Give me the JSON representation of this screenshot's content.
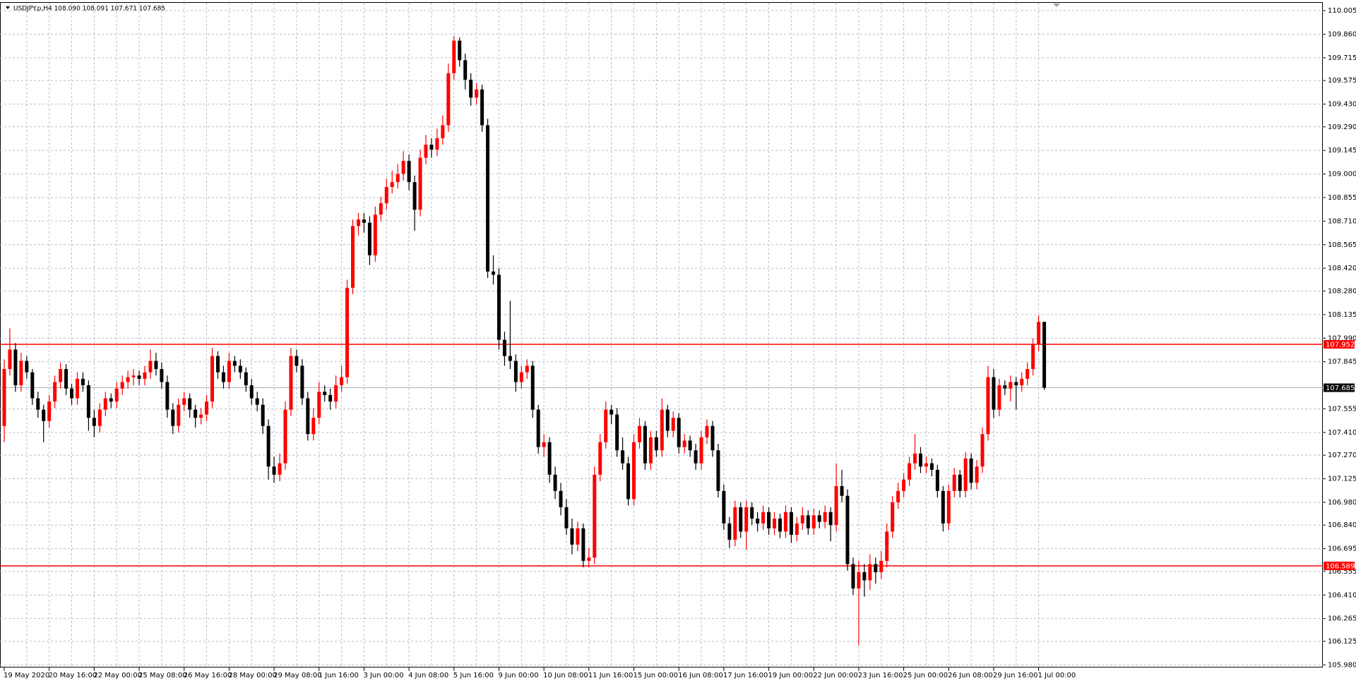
{
  "chart_data": {
    "type": "candlestick",
    "title": "USDJPY.p,H4  108.090 108.091 107.671 107.685",
    "up_color": "#ff0000",
    "down_color": "#000000",
    "grid": true,
    "ylim": [
      105.964,
      110.053
    ],
    "yticks": [
      110.005,
      {
        "value": 109.86,
        "label": "109.860"
      },
      109.715,
      109.575,
      {
        "value": 109.43,
        "label": "109.430"
      },
      {
        "value": 109.29,
        "label": "109.290"
      },
      109.145,
      {
        "value": 109,
        "label": "109.000"
      },
      108.855,
      {
        "value": 108.71,
        "label": "108.710"
      },
      108.565,
      {
        "value": 108.42,
        "label": "108.420"
      },
      {
        "value": 108.28,
        "label": "108.280"
      },
      108.135,
      {
        "value": 107.99,
        "label": "107.990"
      },
      107.845,
      107.555,
      {
        "value": 107.41,
        "label": "107.410"
      },
      {
        "value": 107.27,
        "label": "107.270"
      },
      107.125,
      {
        "value": 106.98,
        "label": "106.980"
      },
      {
        "value": 106.84,
        "label": "106.840"
      },
      106.695,
      106.555,
      {
        "value": 106.41,
        "label": "106.410"
      },
      106.265,
      106.125,
      {
        "value": 105.98,
        "label": "105.980"
      }
    ],
    "hlines": [
      {
        "value": 107.952,
        "color": "#ff0000"
      },
      {
        "value": 106.589,
        "color": "#ff0000"
      },
      {
        "value": 107.685,
        "color": "#a9b2bd"
      }
    ],
    "categories": [
      "19 May 2020",
      null,
      null,
      null,
      null,
      null,
      null,
      null,
      "20 May 16:00",
      null,
      null,
      null,
      null,
      null,
      null,
      null,
      "22 May 00:00",
      null,
      null,
      null,
      null,
      null,
      null,
      null,
      "25 May 08:00",
      null,
      null,
      null,
      null,
      null,
      null,
      null,
      "26 May 16:00",
      null,
      null,
      null,
      null,
      null,
      null,
      null,
      "28 May 00:00",
      null,
      null,
      null,
      null,
      null,
      null,
      null,
      "29 May 08:00",
      null,
      null,
      null,
      null,
      null,
      null,
      null,
      "1 Jun 16:00",
      null,
      null,
      null,
      null,
      null,
      null,
      null,
      "3 Jun 00:00",
      null,
      null,
      null,
      null,
      null,
      null,
      null,
      "4 Jun 08:00",
      null,
      null,
      null,
      null,
      null,
      null,
      null,
      "5 Jun 16:00",
      null,
      null,
      null,
      null,
      null,
      null,
      null,
      "9 Jun 00:00",
      null,
      null,
      null,
      null,
      null,
      null,
      null,
      "10 Jun 08:00",
      null,
      null,
      null,
      null,
      null,
      null,
      null,
      "11 Jun 16:00",
      null,
      null,
      null,
      null,
      null,
      null,
      null,
      "15 Jun 00:00",
      null,
      null,
      null,
      null,
      null,
      null,
      null,
      "16 Jun 08:00",
      null,
      null,
      null,
      null,
      null,
      null,
      null,
      "17 Jun 16:00",
      null,
      null,
      null,
      null,
      null,
      null,
      null,
      "19 Jun 00:00",
      null,
      null,
      null,
      null,
      null,
      null,
      null,
      "22 Jun 00:00",
      null,
      null,
      null,
      null,
      null,
      null,
      null,
      "23 Jun 16:00",
      null,
      null,
      null,
      null,
      null,
      null,
      null,
      "25 Jun 00:00",
      null,
      null,
      null,
      null,
      null,
      null,
      null,
      "26 Jun 08:00",
      null,
      null,
      null,
      null,
      null,
      null,
      null,
      "29 Jun 16:00",
      null,
      null,
      null,
      null,
      null,
      null,
      null,
      "1 Jul 00:00",
      null
    ],
    "ohlc": [
      [
        107.45,
        107.86,
        107.35,
        107.8
      ],
      [
        107.8,
        108.05,
        107.76,
        107.92
      ],
      [
        107.92,
        107.96,
        107.66,
        107.7
      ],
      [
        107.7,
        107.9,
        107.66,
        107.85
      ],
      [
        107.85,
        107.88,
        107.74,
        107.78
      ],
      [
        107.78,
        107.8,
        107.58,
        107.62
      ],
      [
        107.62,
        107.66,
        107.5,
        107.55
      ],
      [
        107.55,
        107.58,
        107.35,
        107.48
      ],
      [
        107.48,
        107.64,
        107.44,
        107.6
      ],
      [
        107.6,
        107.76,
        107.56,
        107.72
      ],
      [
        107.72,
        107.84,
        107.68,
        107.8
      ],
      [
        107.8,
        107.83,
        107.64,
        107.68
      ],
      [
        107.68,
        107.71,
        107.58,
        107.62
      ],
      [
        107.62,
        107.78,
        107.58,
        107.74
      ],
      [
        107.74,
        107.78,
        107.66,
        107.7
      ],
      [
        107.7,
        107.73,
        107.42,
        107.5
      ],
      [
        107.5,
        107.55,
        107.38,
        107.45
      ],
      [
        107.45,
        107.59,
        107.41,
        107.55
      ],
      [
        107.55,
        107.66,
        107.51,
        107.62
      ],
      [
        107.62,
        107.65,
        107.56,
        107.6
      ],
      [
        107.6,
        107.72,
        107.56,
        107.68
      ],
      [
        107.68,
        107.76,
        107.64,
        107.72
      ],
      [
        107.72,
        107.79,
        107.68,
        107.75
      ],
      [
        107.75,
        107.8,
        107.7,
        107.76
      ],
      [
        107.76,
        107.79,
        107.7,
        107.74
      ],
      [
        107.74,
        107.82,
        107.7,
        107.78
      ],
      [
        107.78,
        107.92,
        107.74,
        107.85
      ],
      [
        107.85,
        107.9,
        107.76,
        107.8
      ],
      [
        107.8,
        107.84,
        107.68,
        107.72
      ],
      [
        107.72,
        107.76,
        107.5,
        107.55
      ],
      [
        107.55,
        107.59,
        107.4,
        107.45
      ],
      [
        107.45,
        107.62,
        107.41,
        107.58
      ],
      [
        107.58,
        107.66,
        107.54,
        107.62
      ],
      [
        107.62,
        107.65,
        107.5,
        107.55
      ],
      [
        107.55,
        107.58,
        107.44,
        107.5
      ],
      [
        107.5,
        107.56,
        107.46,
        107.52
      ],
      [
        107.52,
        107.64,
        107.48,
        107.6
      ],
      [
        107.6,
        107.93,
        107.56,
        107.88
      ],
      [
        107.88,
        107.91,
        107.74,
        107.78
      ],
      [
        107.78,
        107.82,
        107.68,
        107.72
      ],
      [
        107.72,
        107.9,
        107.68,
        107.85
      ],
      [
        107.85,
        107.88,
        107.78,
        107.82
      ],
      [
        107.82,
        107.86,
        107.74,
        107.78
      ],
      [
        107.78,
        107.81,
        107.66,
        107.7
      ],
      [
        107.7,
        107.74,
        107.58,
        107.62
      ],
      [
        107.62,
        107.66,
        107.54,
        107.58
      ],
      [
        107.58,
        107.62,
        107.4,
        107.45
      ],
      [
        107.45,
        107.49,
        107.12,
        107.2
      ],
      [
        107.2,
        107.26,
        107.1,
        107.15
      ],
      [
        107.15,
        107.28,
        107.11,
        107.22
      ],
      [
        107.22,
        107.6,
        107.18,
        107.55
      ],
      [
        107.55,
        107.93,
        107.51,
        107.88
      ],
      [
        107.88,
        107.92,
        107.78,
        107.82
      ],
      [
        107.82,
        107.86,
        107.58,
        107.62
      ],
      [
        107.62,
        107.66,
        107.36,
        107.4
      ],
      [
        107.4,
        107.56,
        107.36,
        107.5
      ],
      [
        107.5,
        107.72,
        107.46,
        107.66
      ],
      [
        107.66,
        107.7,
        107.6,
        107.64
      ],
      [
        107.64,
        107.68,
        107.55,
        107.6
      ],
      [
        107.6,
        107.76,
        107.56,
        107.7
      ],
      [
        107.7,
        107.82,
        107.66,
        107.75
      ],
      [
        107.75,
        108.35,
        107.71,
        108.3
      ],
      [
        108.3,
        108.72,
        108.26,
        108.68
      ],
      [
        108.68,
        108.76,
        108.62,
        108.72
      ],
      [
        108.72,
        108.76,
        108.64,
        108.7
      ],
      [
        108.7,
        108.74,
        108.44,
        108.5
      ],
      [
        108.5,
        108.8,
        108.46,
        108.75
      ],
      [
        108.75,
        108.86,
        108.71,
        108.82
      ],
      [
        108.82,
        108.97,
        108.78,
        108.92
      ],
      [
        108.92,
        109.02,
        108.88,
        108.95
      ],
      [
        108.95,
        109.06,
        108.91,
        109.0
      ],
      [
        109.0,
        109.14,
        108.96,
        109.08
      ],
      [
        109.08,
        109.12,
        108.9,
        108.95
      ],
      [
        108.95,
        108.99,
        108.65,
        108.78
      ],
      [
        108.78,
        109.15,
        108.74,
        109.1
      ],
      [
        109.1,
        109.24,
        109.06,
        109.18
      ],
      [
        109.18,
        109.22,
        109.1,
        109.15
      ],
      [
        109.15,
        109.28,
        109.11,
        109.22
      ],
      [
        109.22,
        109.36,
        109.18,
        109.3
      ],
      [
        109.3,
        109.68,
        109.26,
        109.62
      ],
      [
        109.62,
        109.85,
        109.58,
        109.82
      ],
      [
        109.82,
        109.84,
        109.66,
        109.7
      ],
      [
        109.7,
        109.74,
        109.52,
        109.58
      ],
      [
        109.58,
        109.62,
        109.42,
        109.47
      ],
      [
        109.47,
        109.56,
        109.43,
        109.52
      ],
      [
        109.52,
        109.55,
        109.26,
        109.3
      ],
      [
        109.3,
        109.34,
        108.36,
        108.4
      ],
      [
        108.4,
        108.5,
        108.32,
        108.38
      ],
      [
        108.38,
        108.42,
        107.92,
        107.98
      ],
      [
        107.98,
        108.03,
        107.82,
        107.88
      ],
      [
        107.88,
        108.22,
        107.8,
        107.85
      ],
      [
        107.85,
        107.89,
        107.66,
        107.72
      ],
      [
        107.72,
        107.82,
        107.68,
        107.78
      ],
      [
        107.78,
        107.86,
        107.74,
        107.82
      ],
      [
        107.82,
        107.85,
        107.5,
        107.55
      ],
      [
        107.55,
        107.58,
        107.28,
        107.32
      ],
      [
        107.32,
        107.4,
        107.26,
        107.35
      ],
      [
        107.35,
        107.38,
        107.1,
        107.15
      ],
      [
        107.15,
        107.2,
        107.0,
        107.05
      ],
      [
        107.05,
        107.1,
        106.9,
        106.95
      ],
      [
        106.95,
        107.0,
        106.78,
        106.82
      ],
      [
        106.82,
        106.88,
        106.66,
        106.72
      ],
      [
        106.72,
        106.86,
        106.68,
        106.82
      ],
      [
        106.82,
        106.85,
        106.58,
        106.62
      ],
      [
        106.62,
        106.7,
        106.58,
        106.64
      ],
      [
        106.64,
        107.2,
        106.6,
        107.15
      ],
      [
        107.15,
        107.4,
        107.11,
        107.35
      ],
      [
        107.35,
        107.6,
        107.31,
        107.55
      ],
      [
        107.55,
        107.58,
        107.46,
        107.52
      ],
      [
        107.52,
        107.56,
        107.26,
        107.3
      ],
      [
        107.3,
        107.38,
        107.18,
        107.22
      ],
      [
        107.22,
        107.26,
        106.96,
        107.0
      ],
      [
        107.0,
        107.4,
        106.96,
        107.35
      ],
      [
        107.35,
        107.5,
        107.31,
        107.45
      ],
      [
        107.45,
        107.48,
        107.18,
        107.22
      ],
      [
        107.22,
        107.42,
        107.18,
        107.38
      ],
      [
        107.38,
        107.42,
        107.26,
        107.3
      ],
      [
        107.3,
        107.62,
        107.26,
        107.55
      ],
      [
        107.55,
        107.58,
        107.38,
        107.42
      ],
      [
        107.42,
        107.54,
        107.38,
        107.5
      ],
      [
        107.5,
        107.53,
        107.28,
        107.32
      ],
      [
        107.32,
        107.4,
        107.28,
        107.36
      ],
      [
        107.36,
        107.39,
        107.26,
        107.3
      ],
      [
        107.3,
        107.34,
        107.18,
        107.22
      ],
      [
        107.22,
        107.42,
        107.18,
        107.38
      ],
      [
        107.38,
        107.49,
        107.34,
        107.45
      ],
      [
        107.45,
        107.48,
        107.26,
        107.3
      ],
      [
        107.3,
        107.34,
        107.01,
        107.05
      ],
      [
        107.05,
        107.09,
        106.81,
        106.85
      ],
      [
        106.85,
        106.89,
        106.7,
        106.75
      ],
      [
        106.75,
        106.99,
        106.71,
        106.95
      ],
      [
        106.95,
        106.98,
        106.76,
        106.8
      ],
      [
        106.8,
        106.99,
        106.69,
        106.95
      ],
      [
        106.95,
        106.98,
        106.84,
        106.88
      ],
      [
        106.88,
        106.92,
        106.8,
        106.85
      ],
      [
        106.85,
        106.96,
        106.81,
        106.92
      ],
      [
        106.92,
        106.95,
        106.78,
        106.82
      ],
      [
        106.82,
        106.92,
        106.78,
        106.88
      ],
      [
        106.88,
        106.91,
        106.76,
        106.8
      ],
      [
        106.8,
        106.96,
        106.76,
        106.92
      ],
      [
        106.92,
        106.95,
        106.73,
        106.78
      ],
      [
        106.78,
        106.89,
        106.74,
        106.85
      ],
      [
        106.85,
        106.95,
        106.81,
        106.9
      ],
      [
        106.9,
        106.93,
        106.78,
        106.82
      ],
      [
        106.82,
        106.94,
        106.78,
        106.9
      ],
      [
        106.9,
        106.93,
        106.82,
        106.86
      ],
      [
        106.86,
        106.96,
        106.82,
        106.92
      ],
      [
        106.92,
        106.95,
        106.74,
        106.84
      ],
      [
        106.84,
        107.22,
        106.8,
        107.08
      ],
      [
        107.08,
        107.18,
        106.98,
        107.02
      ],
      [
        107.02,
        107.06,
        106.56,
        106.6
      ],
      [
        106.6,
        106.64,
        106.41,
        106.45
      ],
      [
        106.45,
        106.62,
        106.1,
        106.55
      ],
      [
        106.55,
        106.6,
        106.4,
        106.5
      ],
      [
        106.5,
        106.66,
        106.44,
        106.6
      ],
      [
        106.6,
        106.64,
        106.48,
        106.55
      ],
      [
        106.55,
        106.68,
        106.51,
        106.62
      ],
      [
        106.62,
        106.85,
        106.58,
        106.8
      ],
      [
        106.8,
        107.02,
        106.76,
        106.98
      ],
      [
        106.98,
        107.1,
        106.94,
        107.05
      ],
      [
        107.05,
        107.16,
        107.01,
        107.12
      ],
      [
        107.12,
        107.26,
        107.08,
        107.22
      ],
      [
        107.22,
        107.4,
        107.18,
        107.28
      ],
      [
        107.28,
        107.32,
        107.16,
        107.2
      ],
      [
        107.2,
        107.26,
        107.16,
        107.22
      ],
      [
        107.22,
        107.25,
        107.14,
        107.18
      ],
      [
        107.18,
        107.21,
        107.01,
        107.05
      ],
      [
        107.05,
        107.08,
        106.8,
        106.85
      ],
      [
        106.85,
        107.09,
        106.81,
        107.05
      ],
      [
        107.05,
        107.19,
        107.01,
        107.15
      ],
      [
        107.15,
        107.18,
        107.01,
        107.05
      ],
      [
        107.05,
        107.29,
        107.01,
        107.25
      ],
      [
        107.25,
        107.28,
        107.06,
        107.1
      ],
      [
        107.1,
        107.24,
        107.06,
        107.2
      ],
      [
        107.2,
        107.44,
        107.16,
        107.4
      ],
      [
        107.4,
        107.82,
        107.36,
        107.75
      ],
      [
        107.75,
        107.8,
        107.5,
        107.55
      ],
      [
        107.55,
        107.74,
        107.51,
        107.7
      ],
      [
        107.7,
        107.73,
        107.64,
        107.68
      ],
      [
        107.68,
        107.76,
        107.6,
        107.72
      ],
      [
        107.72,
        107.75,
        107.55,
        107.7
      ],
      [
        107.7,
        107.78,
        107.66,
        107.74
      ],
      [
        107.74,
        107.84,
        107.7,
        107.8
      ],
      [
        107.8,
        107.99,
        107.76,
        107.95
      ],
      [
        107.95,
        108.13,
        107.91,
        108.09
      ],
      [
        108.09,
        108.091,
        107.671,
        107.685
      ]
    ]
  }
}
